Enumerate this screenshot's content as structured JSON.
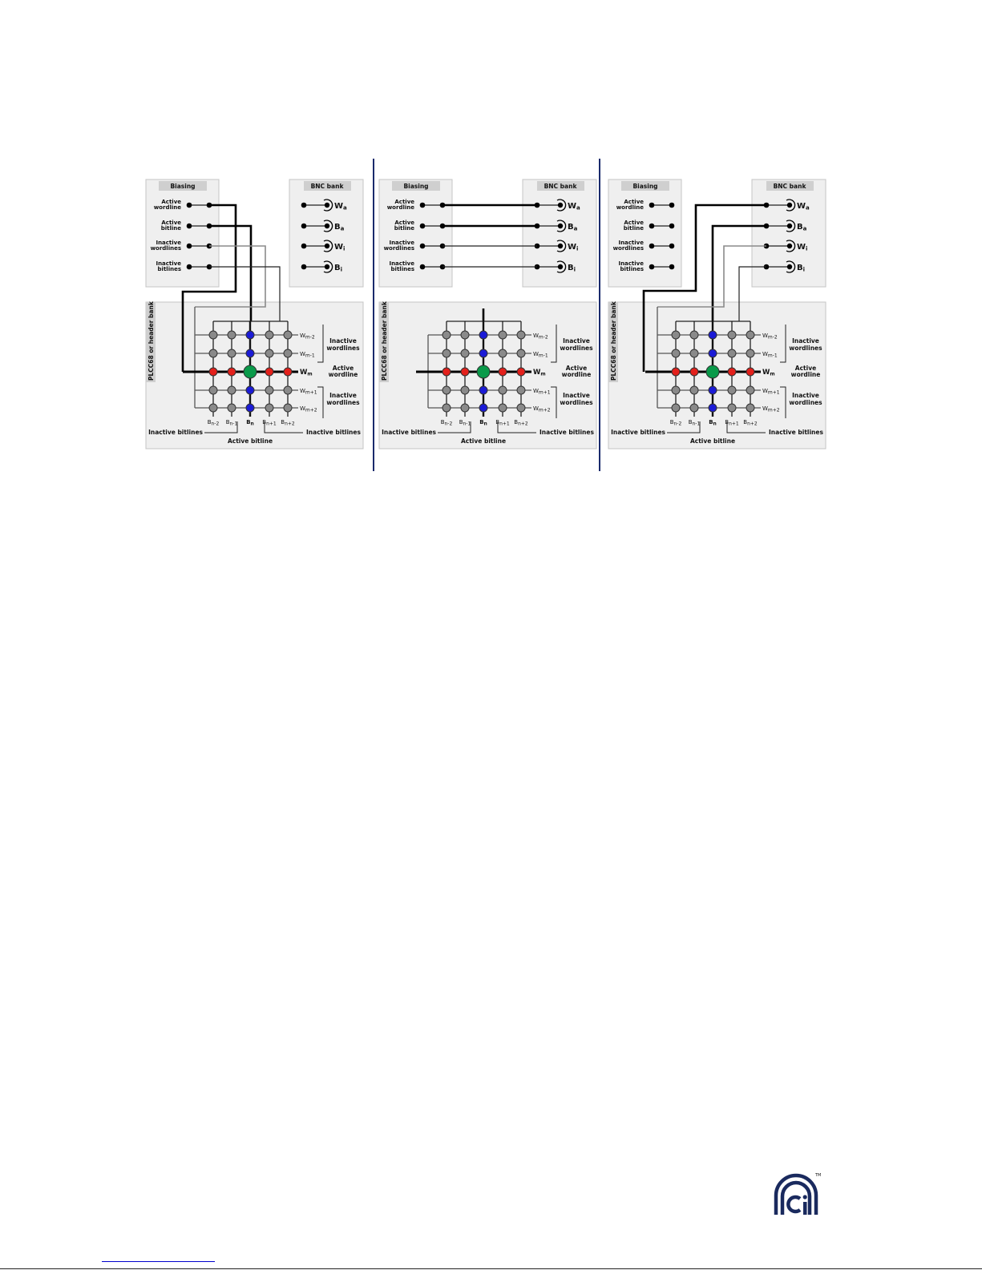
{
  "labels": {
    "biasing_title": "Biasing",
    "bnc_title": "BNC bank",
    "bias_rows": [
      {
        "l1": "Active",
        "l2": "wordline"
      },
      {
        "l1": "Active",
        "l2": "bitline"
      },
      {
        "l1": "Inactive",
        "l2": "wordlines"
      },
      {
        "l1": "Inactive",
        "l2": "bitlines"
      }
    ],
    "bnc_rows": [
      {
        "base": "W",
        "sub": "a"
      },
      {
        "base": "B",
        "sub": "a"
      },
      {
        "base": "W",
        "sub": "i"
      },
      {
        "base": "B",
        "sub": "i"
      }
    ],
    "plcc": "PLCC68 or header bank",
    "wordlines": [
      {
        "base": "W",
        "sub": "m-2"
      },
      {
        "base": "W",
        "sub": "m-1"
      },
      {
        "base": "W",
        "sub": "m"
      },
      {
        "base": "W",
        "sub": "m+1"
      },
      {
        "base": "W",
        "sub": "m+2"
      }
    ],
    "bitlines": [
      {
        "base": "B",
        "sub": "n-2"
      },
      {
        "base": "B",
        "sub": "n-1"
      },
      {
        "base": "B",
        "sub": "n"
      },
      {
        "base": "B",
        "sub": "n+1"
      },
      {
        "base": "B",
        "sub": "n+2"
      }
    ],
    "inactive_wordlines": {
      "l1": "Inactive",
      "l2": "wordlines"
    },
    "active_wordline": {
      "l1": "Active",
      "l2": "wordline"
    },
    "inactive_bitlines": "Inactive bitlines",
    "active_bitline": "Active bitline"
  },
  "panels": [
    {
      "wiring": "biasing-to-array"
    },
    {
      "wiring": "biasing-to-bnc"
    },
    {
      "wiring": "bnc-to-array"
    }
  ],
  "colors": {
    "inactive_cell": "#8a8a8a",
    "half_selected_wordline_cell": "#e3201b",
    "half_selected_bitline_cell": "#1b1bd6",
    "selected_cell": "#0a9a4a",
    "separator": "#1a2a6c",
    "logo": "#1a2a5e"
  },
  "logo": {
    "mark": "Ci",
    "tm": "TM"
  }
}
